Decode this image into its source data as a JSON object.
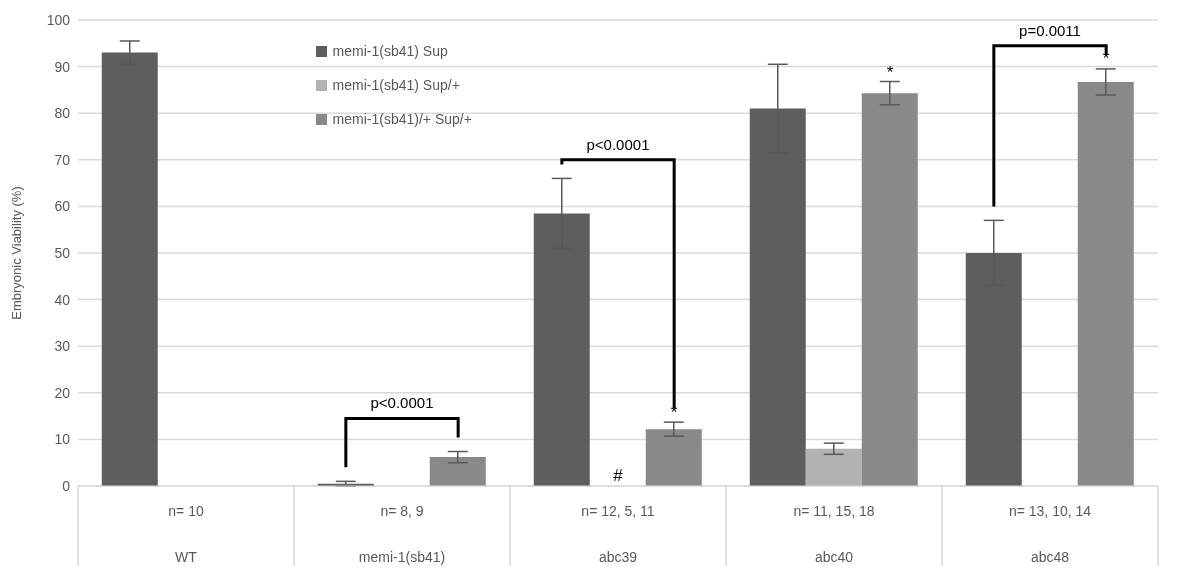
{
  "chart_data": {
    "type": "bar",
    "ylabel": "Embryonic Viability (%)",
    "categories": [
      "n= 10\nWT",
      "n= 8, 9\nmemi-1(sb41)",
      "n= 12, 5, 11\nabc39",
      "n= 11, 15, 18\nabc40",
      "n= 13, 10, 14\nabc48"
    ],
    "series": [
      {
        "name": "memi-1(sb41) Sup",
        "color": "#5e5e5e",
        "values": [
          93,
          0.5,
          58.5,
          81,
          50
        ],
        "errors": [
          2.5,
          0.5,
          7.5,
          9.5,
          7
        ]
      },
      {
        "name": "memi-1(sb41) Sup/+",
        "color": "#b2b2b2",
        "values": [
          null,
          null,
          null,
          8,
          null
        ],
        "errors": [
          null,
          null,
          null,
          1.2,
          null
        ]
      },
      {
        "name": "memi-1(sb41)/+ Sup/+",
        "color": "#898989",
        "values": [
          null,
          6.2,
          12.2,
          84.3,
          86.7
        ],
        "errors": [
          null,
          1.2,
          1.5,
          2.5,
          2.8
        ]
      }
    ],
    "ylim": [
      0,
      100
    ],
    "yticks": [
      0,
      10,
      20,
      30,
      40,
      50,
      60,
      70,
      80,
      90,
      100
    ],
    "grid": "y",
    "legend": "top",
    "annotations": [
      "p<0.0001",
      "p<0.0001",
      "p=0.0011",
      "*",
      "#",
      "*",
      "*"
    ]
  }
}
